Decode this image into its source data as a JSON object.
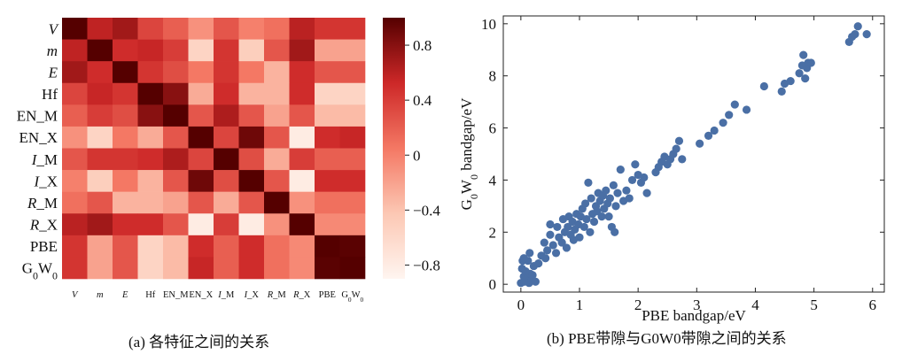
{
  "chart_data": [
    {
      "type": "heatmap",
      "caption": "(a) 各特征之间的关系",
      "row_labels": [
        "V",
        "m",
        "E",
        "Hf",
        "EN_M",
        "EN_X",
        "I_M",
        "I_X",
        "R_M",
        "R_X",
        "PBE",
        "G0W0"
      ],
      "col_labels": [
        "V",
        "m",
        "E",
        "Hf",
        "EN_M",
        "EN_X",
        "I_M",
        "I_X",
        "R_M",
        "R_X",
        "PBE",
        "G0W0"
      ],
      "colorbar": {
        "min": -0.9,
        "max": 1.0,
        "ticks": [
          0.8,
          0.4,
          0,
          -0.4,
          -0.8
        ],
        "tick_labels": [
          "0.8",
          "0.4",
          "0",
          "−0.4",
          "−0.8"
        ]
      },
      "values": [
        [
          1.0,
          0.58,
          0.7,
          0.35,
          0.2,
          -0.1,
          0.25,
          0.0,
          0.1,
          0.6,
          0.45,
          0.45
        ],
        [
          0.58,
          1.0,
          0.5,
          0.55,
          0.4,
          -0.55,
          0.45,
          -0.5,
          0.25,
          0.7,
          -0.2,
          -0.2
        ],
        [
          0.7,
          0.5,
          1.0,
          0.45,
          0.3,
          0.05,
          0.45,
          0.05,
          -0.3,
          0.5,
          0.25,
          0.25
        ],
        [
          0.35,
          0.55,
          0.45,
          1.0,
          0.8,
          -0.25,
          0.5,
          -0.3,
          -0.3,
          0.5,
          -0.55,
          -0.55
        ],
        [
          0.2,
          0.4,
          0.3,
          0.8,
          1.0,
          0.25,
          0.65,
          0.25,
          -0.2,
          0.25,
          -0.35,
          -0.35
        ],
        [
          -0.1,
          -0.55,
          0.05,
          -0.25,
          0.25,
          1.0,
          0.35,
          0.9,
          0.25,
          -0.8,
          0.5,
          0.55
        ],
        [
          0.25,
          0.45,
          0.45,
          0.5,
          0.65,
          0.35,
          1.0,
          0.3,
          -0.25,
          0.4,
          0.2,
          0.2
        ],
        [
          0.0,
          -0.5,
          0.05,
          -0.3,
          0.25,
          0.9,
          0.3,
          1.0,
          0.25,
          -0.8,
          0.5,
          0.5
        ],
        [
          0.1,
          0.25,
          -0.3,
          -0.3,
          -0.2,
          0.25,
          -0.25,
          0.25,
          1.0,
          -0.1,
          0.1,
          0.1
        ],
        [
          0.6,
          0.7,
          0.5,
          0.5,
          0.25,
          -0.8,
          0.4,
          -0.8,
          -0.1,
          1.0,
          -0.05,
          -0.05
        ],
        [
          0.45,
          -0.2,
          0.25,
          -0.55,
          -0.35,
          0.5,
          0.2,
          0.5,
          0.1,
          -0.05,
          1.0,
          0.98
        ],
        [
          0.45,
          -0.2,
          0.25,
          -0.55,
          -0.35,
          0.55,
          0.2,
          0.5,
          0.1,
          -0.05,
          0.98,
          1.0
        ]
      ]
    },
    {
      "type": "scatter",
      "caption": "(b) PBE带隙与G0W0带隙之间的关系",
      "xlabel": "PBE bandgap/eV",
      "ylabel": "G0W0 bandgap/eV",
      "xlim": [
        -0.3,
        6.2
      ],
      "ylim": [
        -0.3,
        10.3
      ],
      "xticks": [
        0,
        1,
        2,
        3,
        4,
        5,
        6
      ],
      "yticks": [
        0,
        2,
        4,
        6,
        8,
        10
      ],
      "color": "#4a6fa5",
      "points": [
        [
          0.0,
          0.05
        ],
        [
          0.02,
          0.6
        ],
        [
          0.03,
          0.9
        ],
        [
          0.05,
          0.3
        ],
        [
          0.06,
          0.1
        ],
        [
          0.08,
          0.5
        ],
        [
          0.1,
          0.2
        ],
        [
          0.12,
          0.9
        ],
        [
          0.14,
          0.05
        ],
        [
          0.16,
          0.4
        ],
        [
          0.18,
          0.15
        ],
        [
          0.2,
          0.35
        ],
        [
          0.22,
          0.7
        ],
        [
          0.25,
          0.1
        ],
        [
          0.05,
          1.0
        ],
        [
          0.15,
          1.2
        ],
        [
          0.3,
          0.8
        ],
        [
          0.35,
          1.1
        ],
        [
          0.4,
          1.6
        ],
        [
          0.42,
          1.0
        ],
        [
          0.45,
          1.3
        ],
        [
          0.5,
          1.9
        ],
        [
          0.5,
          2.3
        ],
        [
          0.55,
          1.5
        ],
        [
          0.6,
          1.2
        ],
        [
          0.62,
          2.2
        ],
        [
          0.65,
          1.8
        ],
        [
          0.7,
          1.6
        ],
        [
          0.72,
          2.5
        ],
        [
          0.75,
          2.0
        ],
        [
          0.78,
          1.4
        ],
        [
          0.8,
          2.2
        ],
        [
          0.82,
          2.6
        ],
        [
          0.85,
          1.9
        ],
        [
          0.88,
          2.4
        ],
        [
          0.9,
          1.7
        ],
        [
          0.92,
          2.1
        ],
        [
          0.95,
          2.7
        ],
        [
          0.98,
          2.3
        ],
        [
          1.0,
          1.8
        ],
        [
          1.02,
          2.6
        ],
        [
          1.05,
          2.9
        ],
        [
          1.08,
          2.2
        ],
        [
          1.1,
          3.1
        ],
        [
          1.12,
          2.5
        ],
        [
          1.15,
          3.9
        ],
        [
          1.18,
          2.0
        ],
        [
          1.2,
          3.3
        ],
        [
          1.22,
          2.7
        ],
        [
          1.25,
          2.4
        ],
        [
          1.28,
          3.0
        ],
        [
          1.3,
          2.8
        ],
        [
          1.32,
          3.5
        ],
        [
          1.35,
          3.2
        ],
        [
          1.38,
          2.6
        ],
        [
          1.4,
          3.4
        ],
        [
          1.42,
          2.9
        ],
        [
          1.45,
          3.6
        ],
        [
          1.48,
          3.1
        ],
        [
          1.5,
          2.6
        ],
        [
          1.52,
          3.3
        ],
        [
          1.55,
          2.2
        ],
        [
          1.58,
          3.8
        ],
        [
          1.6,
          2.0
        ],
        [
          1.62,
          3.0
        ],
        [
          1.65,
          3.5
        ],
        [
          1.7,
          4.4
        ],
        [
          1.75,
          3.2
        ],
        [
          1.8,
          3.6
        ],
        [
          1.85,
          3.3
        ],
        [
          1.9,
          4.0
        ],
        [
          1.95,
          4.6
        ],
        [
          2.0,
          4.2
        ],
        [
          2.05,
          3.9
        ],
        [
          2.1,
          4.1
        ],
        [
          2.15,
          3.5
        ],
        [
          2.3,
          4.3
        ],
        [
          2.35,
          4.5
        ],
        [
          2.4,
          4.7
        ],
        [
          2.45,
          4.9
        ],
        [
          2.5,
          4.6
        ],
        [
          2.55,
          4.8
        ],
        [
          2.6,
          5.0
        ],
        [
          2.65,
          5.2
        ],
        [
          2.7,
          5.5
        ],
        [
          2.75,
          4.8
        ],
        [
          3.05,
          5.4
        ],
        [
          3.2,
          5.7
        ],
        [
          3.3,
          5.9
        ],
        [
          3.45,
          6.2
        ],
        [
          3.55,
          6.5
        ],
        [
          3.65,
          6.9
        ],
        [
          3.85,
          6.7
        ],
        [
          4.15,
          7.6
        ],
        [
          4.45,
          7.4
        ],
        [
          4.5,
          7.7
        ],
        [
          4.6,
          7.8
        ],
        [
          4.75,
          8.1
        ],
        [
          4.8,
          8.4
        ],
        [
          4.82,
          8.8
        ],
        [
          4.85,
          7.9
        ],
        [
          4.88,
          8.3
        ],
        [
          4.9,
          8.5
        ],
        [
          4.95,
          8.5
        ],
        [
          5.6,
          9.3
        ],
        [
          5.65,
          9.5
        ],
        [
          5.7,
          9.6
        ],
        [
          5.75,
          9.9
        ],
        [
          5.9,
          9.6
        ]
      ]
    }
  ]
}
